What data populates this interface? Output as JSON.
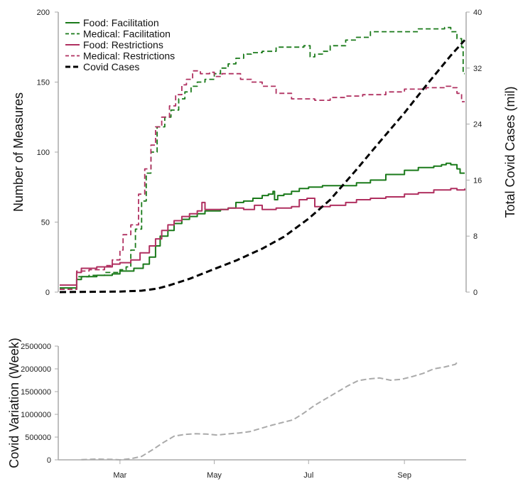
{
  "chart_data": [
    {
      "type": "line",
      "title": "",
      "xlabel": "",
      "ylabel": "Number of Measures",
      "ylabel_right": "Total Covid Cases (mil)",
      "ylim": [
        0,
        200
      ],
      "yticks": [
        0,
        50,
        100,
        150,
        200
      ],
      "ylim_right": [
        0,
        40
      ],
      "yticks_right": [
        0,
        8,
        16,
        24,
        32,
        40
      ],
      "x_range": [
        "2020-01-22",
        "2020-10-10"
      ],
      "grid": false,
      "legend_position": "top-left",
      "series": [
        {
          "name": "Food: Facilitation",
          "color": "#1a7a1a",
          "dash": "solid",
          "axis": "left",
          "points": [
            [
              "2020-01-22",
              3
            ],
            [
              "2020-02-01",
              3
            ],
            [
              "2020-02-02",
              9
            ],
            [
              "2020-02-05",
              11
            ],
            [
              "2020-02-15",
              12
            ],
            [
              "2020-02-25",
              13
            ],
            [
              "2020-03-01",
              15
            ],
            [
              "2020-03-10",
              17
            ],
            [
              "2020-03-16",
              20
            ],
            [
              "2020-03-20",
              25
            ],
            [
              "2020-03-24",
              33
            ],
            [
              "2020-03-27",
              40
            ],
            [
              "2020-04-01",
              44
            ],
            [
              "2020-04-05",
              49
            ],
            [
              "2020-04-10",
              52
            ],
            [
              "2020-04-15",
              54
            ],
            [
              "2020-04-20",
              56
            ],
            [
              "2020-04-25",
              58
            ],
            [
              "2020-05-01",
              58
            ],
            [
              "2020-05-05",
              59
            ],
            [
              "2020-05-10",
              60
            ],
            [
              "2020-05-15",
              64
            ],
            [
              "2020-05-20",
              65
            ],
            [
              "2020-05-26",
              67
            ],
            [
              "2020-06-01",
              69
            ],
            [
              "2020-06-05",
              70
            ],
            [
              "2020-06-08",
              72
            ],
            [
              "2020-06-09",
              66
            ],
            [
              "2020-06-11",
              69
            ],
            [
              "2020-06-15",
              70
            ],
            [
              "2020-06-20",
              72
            ],
            [
              "2020-06-25",
              74
            ],
            [
              "2020-07-01",
              75
            ],
            [
              "2020-07-10",
              76
            ],
            [
              "2020-07-20",
              76
            ],
            [
              "2020-08-01",
              78
            ],
            [
              "2020-08-10",
              80
            ],
            [
              "2020-08-20",
              84
            ],
            [
              "2020-09-01",
              87
            ],
            [
              "2020-09-10",
              89
            ],
            [
              "2020-09-20",
              90
            ],
            [
              "2020-09-25",
              91
            ],
            [
              "2020-09-28",
              92
            ],
            [
              "2020-10-01",
              91
            ],
            [
              "2020-10-05",
              88
            ],
            [
              "2020-10-07",
              85
            ],
            [
              "2020-10-10",
              85
            ]
          ]
        },
        {
          "name": "Medical: Facilitation",
          "color": "#1a7a1a",
          "dash": "dashed",
          "axis": "left",
          "points": [
            [
              "2020-01-22",
              2
            ],
            [
              "2020-02-01",
              2
            ],
            [
              "2020-02-02",
              11
            ],
            [
              "2020-02-10",
              12
            ],
            [
              "2020-02-20",
              14
            ],
            [
              "2020-03-01",
              16
            ],
            [
              "2020-03-05",
              18
            ],
            [
              "2020-03-08",
              30
            ],
            [
              "2020-03-11",
              45
            ],
            [
              "2020-03-15",
              65
            ],
            [
              "2020-03-18",
              85
            ],
            [
              "2020-03-21",
              100
            ],
            [
              "2020-03-25",
              118
            ],
            [
              "2020-03-30",
              125
            ],
            [
              "2020-04-03",
              130
            ],
            [
              "2020-04-08",
              138
            ],
            [
              "2020-04-12",
              143
            ],
            [
              "2020-04-16",
              147
            ],
            [
              "2020-04-20",
              150
            ],
            [
              "2020-04-25",
              152
            ],
            [
              "2020-05-01",
              156
            ],
            [
              "2020-05-05",
              160
            ],
            [
              "2020-05-10",
              163
            ],
            [
              "2020-05-15",
              167
            ],
            [
              "2020-05-20",
              170
            ],
            [
              "2020-05-25",
              171
            ],
            [
              "2020-06-01",
              172
            ],
            [
              "2020-06-10",
              175
            ],
            [
              "2020-06-20",
              175
            ],
            [
              "2020-06-28",
              176
            ],
            [
              "2020-07-01",
              176
            ],
            [
              "2020-07-02",
              168
            ],
            [
              "2020-07-05",
              170
            ],
            [
              "2020-07-10",
              172
            ],
            [
              "2020-07-15",
              176
            ],
            [
              "2020-07-25",
              180
            ],
            [
              "2020-08-01",
              182
            ],
            [
              "2020-08-10",
              186
            ],
            [
              "2020-08-20",
              186
            ],
            [
              "2020-09-01",
              186
            ],
            [
              "2020-09-10",
              188
            ],
            [
              "2020-09-20",
              188
            ],
            [
              "2020-09-27",
              189
            ],
            [
              "2020-10-01",
              186
            ],
            [
              "2020-10-05",
              181
            ],
            [
              "2020-10-08",
              175
            ],
            [
              "2020-10-09",
              156
            ],
            [
              "2020-10-10",
              156
            ]
          ]
        },
        {
          "name": "Food: Restrictions",
          "color": "#b03060",
          "dash": "solid",
          "axis": "left",
          "points": [
            [
              "2020-01-22",
              5
            ],
            [
              "2020-02-01",
              5
            ],
            [
              "2020-02-02",
              14
            ],
            [
              "2020-02-05",
              17
            ],
            [
              "2020-02-15",
              18
            ],
            [
              "2020-02-25",
              20
            ],
            [
              "2020-03-01",
              21
            ],
            [
              "2020-03-08",
              23
            ],
            [
              "2020-03-14",
              28
            ],
            [
              "2020-03-20",
              33
            ],
            [
              "2020-03-24",
              38
            ],
            [
              "2020-03-28",
              44
            ],
            [
              "2020-04-01",
              48
            ],
            [
              "2020-04-05",
              51
            ],
            [
              "2020-04-10",
              54
            ],
            [
              "2020-04-15",
              56
            ],
            [
              "2020-04-20",
              58
            ],
            [
              "2020-04-23",
              64
            ],
            [
              "2020-04-25",
              59
            ],
            [
              "2020-05-01",
              59
            ],
            [
              "2020-05-10",
              60
            ],
            [
              "2020-05-20",
              59
            ],
            [
              "2020-05-27",
              62
            ],
            [
              "2020-06-01",
              59
            ],
            [
              "2020-06-10",
              60
            ],
            [
              "2020-06-20",
              61
            ],
            [
              "2020-06-25",
              66
            ],
            [
              "2020-06-30",
              67
            ],
            [
              "2020-07-05",
              61
            ],
            [
              "2020-07-15",
              62
            ],
            [
              "2020-07-25",
              64
            ],
            [
              "2020-08-01",
              66
            ],
            [
              "2020-08-10",
              67
            ],
            [
              "2020-08-20",
              68
            ],
            [
              "2020-09-01",
              70
            ],
            [
              "2020-09-10",
              71
            ],
            [
              "2020-09-20",
              73
            ],
            [
              "2020-10-01",
              74
            ],
            [
              "2020-10-05",
              73
            ],
            [
              "2020-10-10",
              74
            ]
          ]
        },
        {
          "name": "Medical: Restrictions",
          "color": "#b03060",
          "dash": "dashed",
          "axis": "left",
          "points": [
            [
              "2020-01-22",
              2
            ],
            [
              "2020-02-01",
              2
            ],
            [
              "2020-02-02",
              15
            ],
            [
              "2020-02-10",
              16
            ],
            [
              "2020-02-20",
              19
            ],
            [
              "2020-02-25",
              23
            ],
            [
              "2020-03-01",
              30
            ],
            [
              "2020-03-03",
              41
            ],
            [
              "2020-03-08",
              48
            ],
            [
              "2020-03-13",
              70
            ],
            [
              "2020-03-17",
              88
            ],
            [
              "2020-03-21",
              105
            ],
            [
              "2020-03-24",
              118
            ],
            [
              "2020-03-28",
              125
            ],
            [
              "2020-04-02",
              133
            ],
            [
              "2020-04-06",
              141
            ],
            [
              "2020-04-10",
              148
            ],
            [
              "2020-04-13",
              152
            ],
            [
              "2020-04-17",
              158
            ],
            [
              "2020-04-22",
              156
            ],
            [
              "2020-04-28",
              157
            ],
            [
              "2020-05-01",
              154
            ],
            [
              "2020-05-06",
              156
            ],
            [
              "2020-05-12",
              156
            ],
            [
              "2020-05-18",
              152
            ],
            [
              "2020-05-25",
              150
            ],
            [
              "2020-06-01",
              147
            ],
            [
              "2020-06-10",
              142
            ],
            [
              "2020-06-20",
              138
            ],
            [
              "2020-06-30",
              138
            ],
            [
              "2020-07-05",
              137
            ],
            [
              "2020-07-15",
              139
            ],
            [
              "2020-07-25",
              140
            ],
            [
              "2020-08-05",
              141
            ],
            [
              "2020-08-20",
              143
            ],
            [
              "2020-09-01",
              145
            ],
            [
              "2020-09-15",
              146
            ],
            [
              "2020-09-28",
              147
            ],
            [
              "2020-10-01",
              146
            ],
            [
              "2020-10-05",
              142
            ],
            [
              "2020-10-08",
              136
            ],
            [
              "2020-10-10",
              136
            ]
          ]
        },
        {
          "name": "Covid Cases",
          "color": "#000000",
          "dash": "dashed-thick",
          "axis": "right",
          "points": [
            [
              "2020-01-22",
              0
            ],
            [
              "2020-02-15",
              0.05
            ],
            [
              "2020-03-01",
              0.08
            ],
            [
              "2020-03-15",
              0.2
            ],
            [
              "2020-03-25",
              0.5
            ],
            [
              "2020-04-01",
              0.9
            ],
            [
              "2020-04-15",
              1.9
            ],
            [
              "2020-05-01",
              3.3
            ],
            [
              "2020-05-15",
              4.5
            ],
            [
              "2020-06-01",
              6.2
            ],
            [
              "2020-06-15",
              7.9
            ],
            [
              "2020-07-01",
              10.5
            ],
            [
              "2020-07-15",
              13.2
            ],
            [
              "2020-08-01",
              17.5
            ],
            [
              "2020-08-15",
              21.2
            ],
            [
              "2020-09-01",
              25.6
            ],
            [
              "2020-09-15",
              29.5
            ],
            [
              "2020-10-01",
              33.8
            ],
            [
              "2020-10-10",
              36.0
            ]
          ]
        }
      ]
    },
    {
      "type": "line",
      "title": "",
      "xlabel": "",
      "ylabel": "Covid Variation (Week)",
      "ylim": [
        0,
        2500000
      ],
      "yticks": [
        0,
        500000,
        1000000,
        1500000,
        2000000,
        2500000
      ],
      "x_range": [
        "2020-01-22",
        "2020-10-10"
      ],
      "xticks": [
        "Mar",
        "May",
        "Jul",
        "Sep"
      ],
      "xtick_dates": [
        "2020-03-01",
        "2020-05-01",
        "2020-07-01",
        "2020-09-01"
      ],
      "grid": false,
      "series": [
        {
          "color": "#aaaaaa",
          "dash": "dashed",
          "points": [
            [
              "2020-02-05",
              5000
            ],
            [
              "2020-02-15",
              15000
            ],
            [
              "2020-02-25",
              10000
            ],
            [
              "2020-03-01",
              0
            ],
            [
              "2020-03-08",
              25000
            ],
            [
              "2020-03-15",
              75000
            ],
            [
              "2020-03-22",
              220000
            ],
            [
              "2020-03-29",
              380000
            ],
            [
              "2020-04-05",
              520000
            ],
            [
              "2020-04-12",
              560000
            ],
            [
              "2020-04-19",
              575000
            ],
            [
              "2020-04-26",
              565000
            ],
            [
              "2020-05-03",
              545000
            ],
            [
              "2020-05-10",
              570000
            ],
            [
              "2020-05-17",
              590000
            ],
            [
              "2020-05-24",
              620000
            ],
            [
              "2020-05-31",
              690000
            ],
            [
              "2020-06-07",
              760000
            ],
            [
              "2020-06-14",
              820000
            ],
            [
              "2020-06-21",
              880000
            ],
            [
              "2020-06-28",
              1030000
            ],
            [
              "2020-07-05",
              1200000
            ],
            [
              "2020-07-12",
              1340000
            ],
            [
              "2020-07-19",
              1480000
            ],
            [
              "2020-07-26",
              1620000
            ],
            [
              "2020-08-02",
              1740000
            ],
            [
              "2020-08-09",
              1780000
            ],
            [
              "2020-08-16",
              1800000
            ],
            [
              "2020-08-23",
              1750000
            ],
            [
              "2020-08-30",
              1770000
            ],
            [
              "2020-09-06",
              1830000
            ],
            [
              "2020-09-13",
              1900000
            ],
            [
              "2020-09-20",
              2000000
            ],
            [
              "2020-09-27",
              2040000
            ],
            [
              "2020-10-04",
              2100000
            ],
            [
              "2020-10-06",
              2180000
            ]
          ]
        }
      ]
    }
  ]
}
